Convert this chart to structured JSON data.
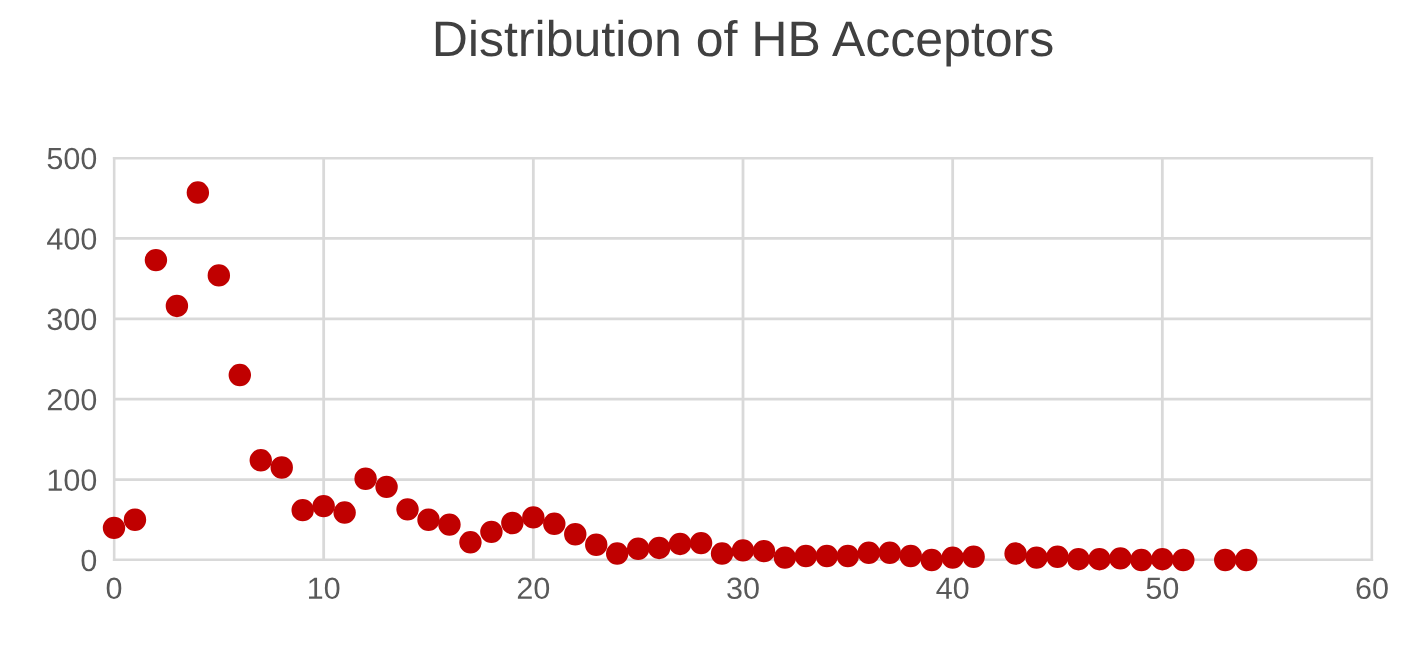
{
  "chart_data": {
    "type": "scatter",
    "title": "Distribution of HB Acceptors",
    "x": [
      0,
      1,
      2,
      3,
      4,
      5,
      6,
      7,
      8,
      9,
      10,
      11,
      12,
      13,
      14,
      15,
      16,
      17,
      18,
      19,
      20,
      21,
      22,
      23,
      24,
      25,
      26,
      27,
      28,
      29,
      30,
      31,
      32,
      33,
      34,
      35,
      36,
      37,
      38,
      39,
      40,
      41,
      43,
      44,
      45,
      46,
      47,
      48,
      49,
      50,
      51,
      53,
      54
    ],
    "series": [
      {
        "color": "#c00000",
        "values": [
          40,
          50,
          373,
          316,
          457,
          354,
          230,
          124,
          115,
          62,
          67,
          59,
          101,
          91,
          63,
          50,
          44,
          22,
          35,
          46,
          53,
          45,
          32,
          19,
          8,
          14,
          15,
          20,
          21,
          8,
          12,
          11,
          3,
          5,
          5,
          5,
          9,
          9,
          5,
          0,
          3,
          4,
          8,
          3,
          4,
          1,
          1,
          2,
          0,
          1,
          0,
          0,
          0
        ]
      }
    ],
    "xlim": [
      0,
      60
    ],
    "xticks": [
      0,
      10,
      20,
      30,
      40,
      50,
      60
    ],
    "ylim": [
      0,
      500
    ],
    "yticks": [
      0,
      100,
      200,
      300,
      400,
      500
    ],
    "grid": true,
    "marker": "circle",
    "legend": false
  }
}
